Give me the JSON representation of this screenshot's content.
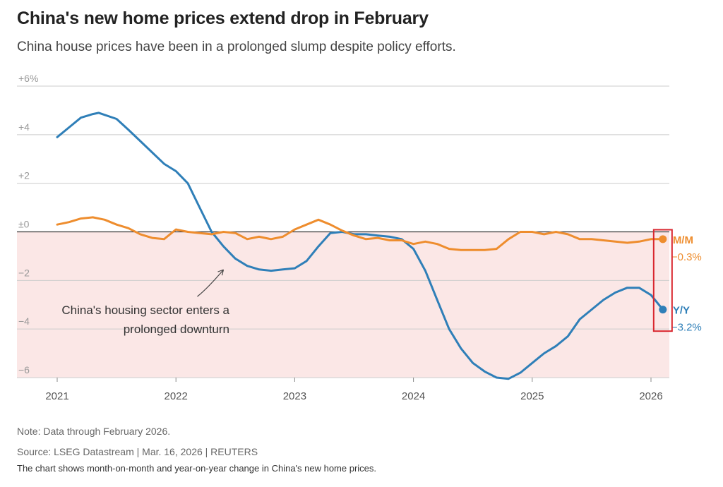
{
  "title": "China's new home prices extend drop in February",
  "subtitle": "China house prices have been in a prolonged slump despite policy efforts.",
  "note": "Note: Data through February 2026.",
  "source": "Source: LSEG Datastream | Mar. 16, 2026 | REUTERS",
  "caption": "The chart shows month-on-month and year-on-year change in China's new home prices.",
  "colors": {
    "yy": "#2f7fb8",
    "mm": "#ee8d2e",
    "negative_band": "#fbe7e6",
    "highlight_box": "#d9262e",
    "grid": "#cccccc",
    "zero_line": "#333333"
  },
  "chart_data": {
    "type": "line",
    "title": "China's new home prices extend drop in February",
    "subtitle": "China house prices have been in a prolonged slump despite policy efforts.",
    "y_tick_labels": [
      "+6%",
      "+4",
      "+2",
      "±0",
      "−2",
      "−4",
      "−6"
    ],
    "y_ticks": [
      6,
      4,
      2,
      0,
      -2,
      -4,
      -6
    ],
    "x_tick_labels": [
      "2021",
      "2022",
      "2023",
      "2024",
      "2025",
      "2026"
    ],
    "ylim": [
      -6.2,
      6
    ],
    "xlim": [
      2020.85,
      2026.15
    ],
    "grid": true,
    "shaded_negative_region": true,
    "annotation": {
      "lines": [
        "China's housing sector enters a",
        "prolonged downturn"
      ],
      "points_to": [
        2022.4,
        -1.5
      ]
    },
    "series": [
      {
        "name": "Y/Y",
        "end_label": "−3.2%",
        "points": [
          [
            2021.0,
            3.9
          ],
          [
            2021.1,
            4.3
          ],
          [
            2021.2,
            4.7
          ],
          [
            2021.3,
            4.85
          ],
          [
            2021.35,
            4.9
          ],
          [
            2021.5,
            4.65
          ],
          [
            2021.6,
            4.2
          ],
          [
            2021.75,
            3.5
          ],
          [
            2021.9,
            2.8
          ],
          [
            2022.0,
            2.5
          ],
          [
            2022.1,
            2.0
          ],
          [
            2022.2,
            1.0
          ],
          [
            2022.3,
            0.0
          ],
          [
            2022.4,
            -0.6
          ],
          [
            2022.5,
            -1.1
          ],
          [
            2022.6,
            -1.4
          ],
          [
            2022.7,
            -1.55
          ],
          [
            2022.8,
            -1.6
          ],
          [
            2022.9,
            -1.55
          ],
          [
            2023.0,
            -1.5
          ],
          [
            2023.1,
            -1.2
          ],
          [
            2023.2,
            -0.6
          ],
          [
            2023.3,
            -0.05
          ],
          [
            2023.4,
            0.0
          ],
          [
            2023.5,
            -0.1
          ],
          [
            2023.6,
            -0.1
          ],
          [
            2023.7,
            -0.15
          ],
          [
            2023.8,
            -0.2
          ],
          [
            2023.9,
            -0.3
          ],
          [
            2024.0,
            -0.7
          ],
          [
            2024.1,
            -1.6
          ],
          [
            2024.2,
            -2.8
          ],
          [
            2024.3,
            -4.0
          ],
          [
            2024.4,
            -4.8
          ],
          [
            2024.5,
            -5.4
          ],
          [
            2024.6,
            -5.75
          ],
          [
            2024.7,
            -6.0
          ],
          [
            2024.8,
            -6.05
          ],
          [
            2024.9,
            -5.8
          ],
          [
            2025.0,
            -5.4
          ],
          [
            2025.1,
            -5.0
          ],
          [
            2025.2,
            -4.7
          ],
          [
            2025.3,
            -4.3
          ],
          [
            2025.4,
            -3.6
          ],
          [
            2025.5,
            -3.2
          ],
          [
            2025.6,
            -2.8
          ],
          [
            2025.7,
            -2.5
          ],
          [
            2025.8,
            -2.3
          ],
          [
            2025.9,
            -2.3
          ],
          [
            2026.0,
            -2.6
          ],
          [
            2026.1,
            -3.2
          ]
        ]
      },
      {
        "name": "M/M",
        "end_label": "−0.3%",
        "points": [
          [
            2021.0,
            0.3
          ],
          [
            2021.1,
            0.4
          ],
          [
            2021.2,
            0.55
          ],
          [
            2021.3,
            0.6
          ],
          [
            2021.4,
            0.5
          ],
          [
            2021.5,
            0.3
          ],
          [
            2021.6,
            0.15
          ],
          [
            2021.7,
            -0.1
          ],
          [
            2021.8,
            -0.25
          ],
          [
            2021.9,
            -0.3
          ],
          [
            2022.0,
            0.1
          ],
          [
            2022.1,
            0.0
          ],
          [
            2022.2,
            -0.05
          ],
          [
            2022.3,
            -0.1
          ],
          [
            2022.4,
            0.0
          ],
          [
            2022.5,
            -0.05
          ],
          [
            2022.6,
            -0.3
          ],
          [
            2022.7,
            -0.2
          ],
          [
            2022.8,
            -0.3
          ],
          [
            2022.9,
            -0.2
          ],
          [
            2023.0,
            0.1
          ],
          [
            2023.1,
            0.3
          ],
          [
            2023.2,
            0.5
          ],
          [
            2023.3,
            0.3
          ],
          [
            2023.4,
            0.05
          ],
          [
            2023.5,
            -0.15
          ],
          [
            2023.6,
            -0.3
          ],
          [
            2023.7,
            -0.25
          ],
          [
            2023.8,
            -0.35
          ],
          [
            2023.9,
            -0.35
          ],
          [
            2024.0,
            -0.5
          ],
          [
            2024.1,
            -0.4
          ],
          [
            2024.2,
            -0.5
          ],
          [
            2024.3,
            -0.7
          ],
          [
            2024.4,
            -0.75
          ],
          [
            2024.5,
            -0.75
          ],
          [
            2024.6,
            -0.75
          ],
          [
            2024.7,
            -0.7
          ],
          [
            2024.8,
            -0.3
          ],
          [
            2024.9,
            0.0
          ],
          [
            2025.0,
            0.0
          ],
          [
            2025.1,
            -0.1
          ],
          [
            2025.2,
            0.0
          ],
          [
            2025.3,
            -0.1
          ],
          [
            2025.4,
            -0.3
          ],
          [
            2025.5,
            -0.3
          ],
          [
            2025.6,
            -0.35
          ],
          [
            2025.7,
            -0.4
          ],
          [
            2025.8,
            -0.45
          ],
          [
            2025.9,
            -0.4
          ],
          [
            2026.0,
            -0.3
          ],
          [
            2026.1,
            -0.3
          ]
        ]
      }
    ]
  }
}
